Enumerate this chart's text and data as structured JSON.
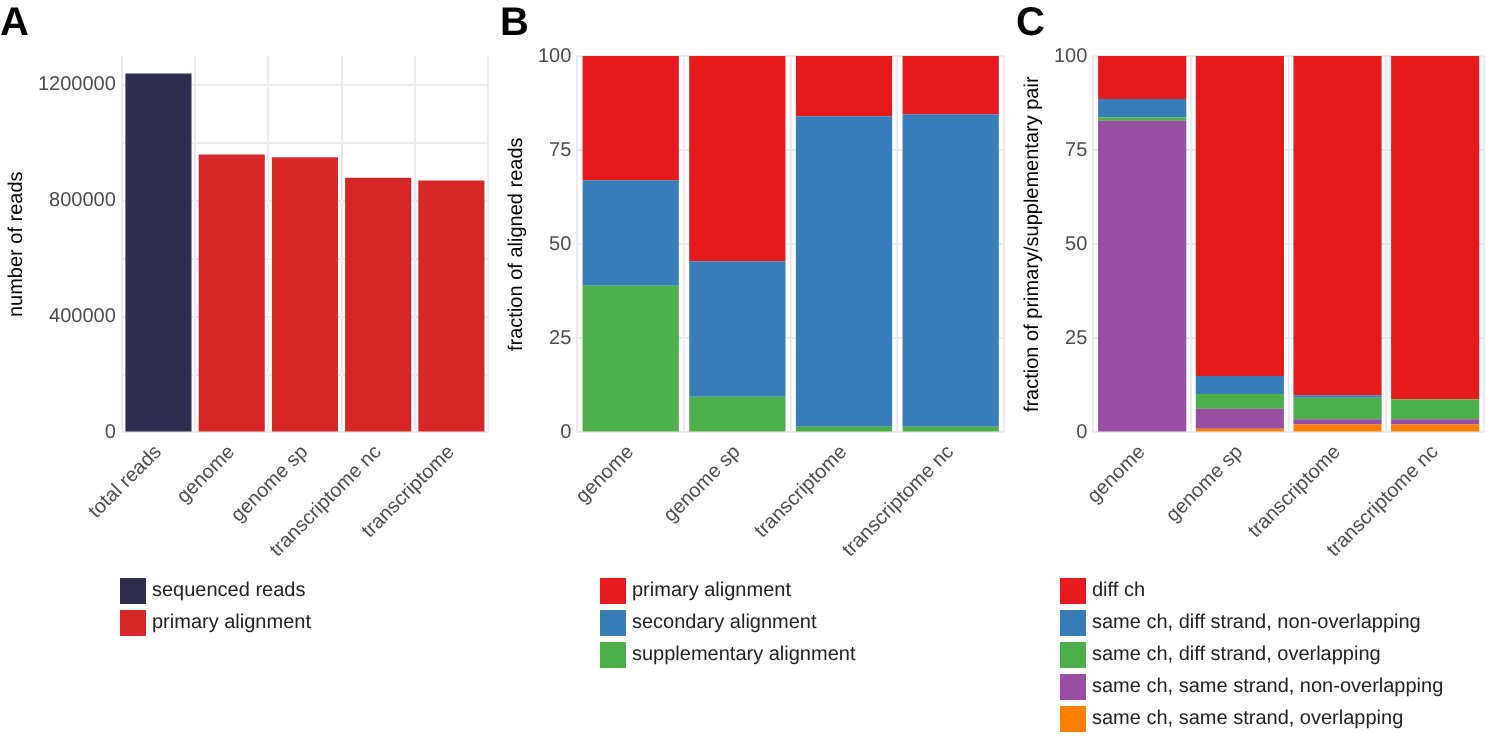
{
  "chart_data": [
    {
      "type": "bar",
      "title": "A",
      "ylabel": "number of reads",
      "categories": [
        "total reads",
        "genome",
        "genome sp",
        "transcriptome nc",
        "transcriptome"
      ],
      "series": [
        {
          "name": "sequenced reads",
          "color": "#2e2d4d",
          "values": [
            1240000,
            null,
            null,
            null,
            null
          ]
        },
        {
          "name": "primary alignment",
          "color": "#d62728",
          "values": [
            null,
            960000,
            950000,
            880000,
            870000
          ]
        }
      ],
      "ylim": [
        0,
        1300000
      ],
      "yticks": [
        0,
        {
          "value": 200000,
          "label": null
        },
        400000,
        {
          "value": 600000,
          "label": null
        },
        800000,
        {
          "value": 1000000,
          "label": null
        },
        1200000
      ],
      "grid": true,
      "legend": "bottom"
    },
    {
      "type": "bar",
      "title": "B",
      "ylabel": "fraction of aligned reads",
      "categories": [
        "genome",
        "genome sp",
        "transcriptome",
        "transcriptome nc"
      ],
      "stacked": true,
      "series": [
        {
          "name": "supplementary alignment",
          "color": "#4daf4a",
          "values": [
            39,
            9.5,
            1.5,
            1.5
          ]
        },
        {
          "name": "secondary alignment",
          "color": "#377eb8",
          "values": [
            28,
            36,
            82.5,
            83
          ]
        },
        {
          "name": "primary alignment",
          "color": "#e41a1c",
          "values": [
            33,
            54.5,
            16,
            15.5
          ]
        }
      ],
      "ylim": [
        0,
        100
      ],
      "yticks": [
        0,
        25,
        50,
        75,
        100
      ],
      "grid": true,
      "legend": "bottom"
    },
    {
      "type": "bar",
      "title": "C",
      "ylabel": "fraction of primary/supplementary pair",
      "categories": [
        "genome",
        "genome sp",
        "transcriptome",
        "transcriptome nc"
      ],
      "stacked": true,
      "series": [
        {
          "name": "same ch, same strand, overlapping",
          "color": "#ff7f00",
          "values": [
            null,
            1,
            2.1,
            2.1
          ]
        },
        {
          "name": "same ch, same strand, non-overlapping",
          "color": "#984ea3",
          "values": [
            82.8,
            5.3,
            1.4,
            1.4
          ]
        },
        {
          "name": "same ch, diff strand, overlapping",
          "color": "#4daf4a",
          "values": [
            0.9,
            3.9,
            5.7,
            5.3
          ]
        },
        {
          "name": "same ch, diff strand, non-overlapping",
          "color": "#377eb8",
          "values": [
            4.9,
            4.8,
            0.7,
            null
          ]
        },
        {
          "name": "diff ch",
          "color": "#e41a1c",
          "values": [
            11.4,
            85,
            90.1,
            91.2
          ]
        }
      ],
      "ylim": [
        0,
        100
      ],
      "yticks": [
        0,
        25,
        50,
        75,
        100
      ],
      "grid": true,
      "legend": "bottom"
    }
  ]
}
